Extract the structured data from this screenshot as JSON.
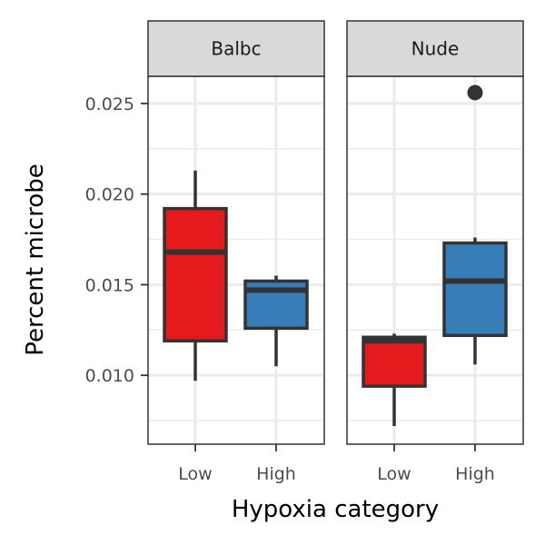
{
  "chart_data": {
    "type": "boxplot",
    "xlabel": "Hypoxia category",
    "ylabel": "Percent microbe",
    "ylim": [
      0.0062,
      0.0265
    ],
    "yticks": [
      0.01,
      0.015,
      0.02,
      0.025
    ],
    "ytick_labels": [
      "0.010",
      "0.015",
      "0.020",
      "0.025"
    ],
    "categories": [
      "Low",
      "High"
    ],
    "category_colors": {
      "Low": "#e41a1c",
      "High": "#377eb8"
    },
    "grid": true,
    "legend": "none",
    "panels": [
      {
        "facet": "Balbc",
        "boxes": [
          {
            "category": "Low",
            "min": 0.0097,
            "q1": 0.0119,
            "median": 0.0168,
            "q3": 0.0192,
            "max": 0.0213,
            "outliers": []
          },
          {
            "category": "High",
            "min": 0.0105,
            "q1": 0.0126,
            "median": 0.0147,
            "q3": 0.0152,
            "max": 0.0155,
            "outliers": []
          }
        ]
      },
      {
        "facet": "Nude",
        "boxes": [
          {
            "category": "Low",
            "min": 0.0072,
            "q1": 0.0094,
            "median": 0.0119,
            "q3": 0.0121,
            "max": 0.0123,
            "outliers": []
          },
          {
            "category": "High",
            "min": 0.0106,
            "q1": 0.0122,
            "median": 0.0152,
            "q3": 0.0173,
            "max": 0.0176,
            "outliers": [
              0.0256
            ]
          }
        ]
      }
    ]
  }
}
